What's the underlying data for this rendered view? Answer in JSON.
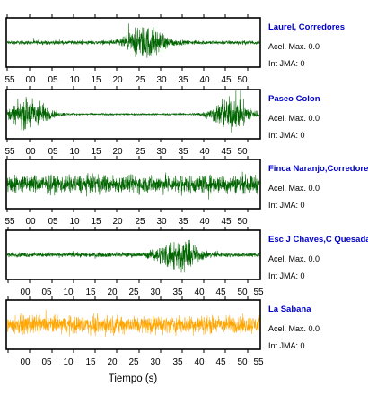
{
  "chart_data": [
    {
      "type": "line",
      "station": "Laurel, Corredores",
      "acel_max_label": "Acel. Max. 0.0",
      "int_jma_label": "Int JMA: 0",
      "tick_labels": [
        "55",
        "00",
        "05",
        "10",
        "15",
        "20",
        "25",
        "30",
        "35",
        "40",
        "45",
        "50"
      ],
      "color": "#006400",
      "burst_centers": [
        26
      ],
      "noise_level": 0.12
    },
    {
      "type": "line",
      "station": "Paseo Colon",
      "acel_max_label": "Acel. Max. 0.0",
      "int_jma_label": "Int JMA: 0",
      "tick_labels": [
        "55",
        "00",
        "05",
        "10",
        "15",
        "20",
        "25",
        "30",
        "35",
        "40",
        "45",
        "50"
      ],
      "color": "#006400",
      "burst_centers": [
        0,
        45
      ],
      "noise_level": 0.06
    },
    {
      "type": "line",
      "station": "Finca Naranjo,Corredores",
      "acel_max_label": "Acel. Max. 0.0",
      "int_jma_label": "Int JMA: 0",
      "tick_labels": [
        "55",
        "00",
        "05",
        "10",
        "15",
        "20",
        "25",
        "30",
        "35",
        "40",
        "45",
        "50"
      ],
      "color": "#006400",
      "burst_centers": [],
      "noise_level": 0.55
    },
    {
      "type": "line",
      "station": "Esc J Chaves,C Quesada",
      "acel_max_label": "Acel. Max. 0.0",
      "int_jma_label": "Int JMA: 0",
      "tick_labels": [
        "00",
        "05",
        "10",
        "15",
        "20",
        "25",
        "30",
        "35",
        "40",
        "45",
        "50",
        "55"
      ],
      "color": "#006400",
      "burst_centers": [
        33
      ],
      "noise_level": 0.14
    },
    {
      "type": "line",
      "station": "La Sabana",
      "acel_max_label": "Acel. Max. 0.0",
      "int_jma_label": "Int JMA: 0",
      "tick_labels": [
        "00",
        "05",
        "10",
        "15",
        "20",
        "25",
        "30",
        "35",
        "40",
        "45",
        "50",
        "55"
      ],
      "color": "#FFA500",
      "burst_centers": [],
      "noise_level": 0.55
    }
  ],
  "xlabel": "Tiempo (s)",
  "station_name_color": "#0000CC",
  "frame_color": "#000000"
}
